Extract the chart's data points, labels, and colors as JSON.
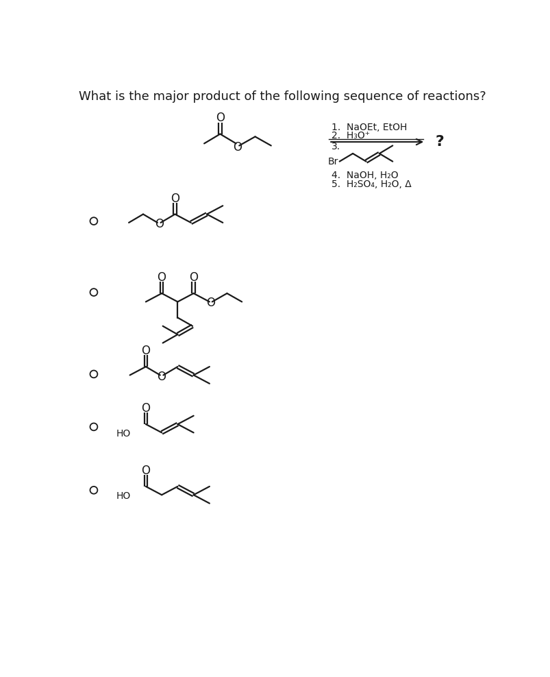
{
  "title": "What is the major product of the following sequence of reactions?",
  "title_fontsize": 13,
  "background_color": "#ffffff",
  "text_color": "#1a1a1a",
  "reaction_lines": [
    "1.  NaOEt, EtOH",
    "2.  H₃O⁺",
    "3.",
    "4.  NaOH, H₂O",
    "5.  H₂SO₄, H₂O, Δ"
  ],
  "question_mark": "?",
  "br_label": "Br",
  "ho_label": "HO",
  "o_label": "O"
}
